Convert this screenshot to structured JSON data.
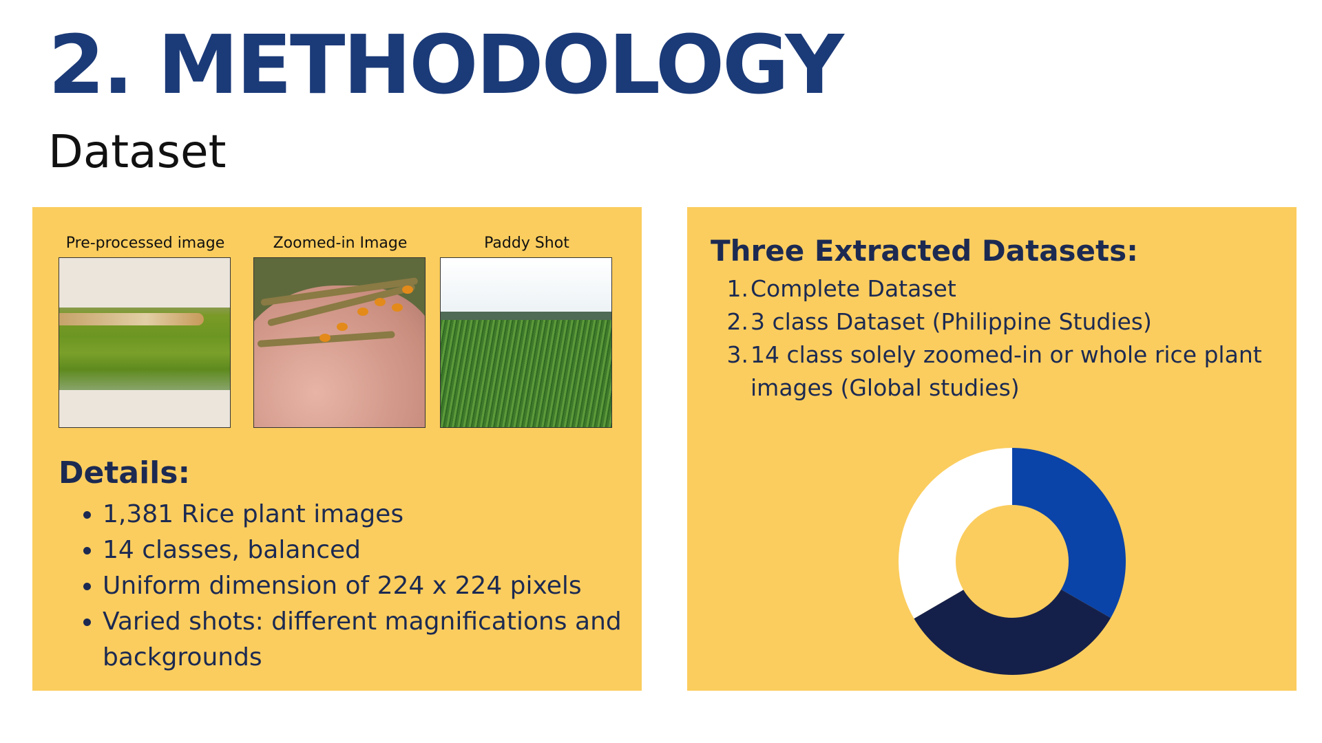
{
  "header": {
    "title": "2. METHODOLOGY",
    "subtitle": "Dataset"
  },
  "left_panel": {
    "images": [
      {
        "label": "Pre-processed image"
      },
      {
        "label": "Zoomed-in Image"
      },
      {
        "label": "Paddy Shot"
      }
    ],
    "details_heading": "Details:",
    "details": [
      "1,381 Rice plant images",
      "14 classes, balanced",
      "Uniform dimension of 224 x 224 pixels",
      "Varied shots: different magnifications and backgrounds"
    ]
  },
  "right_panel": {
    "heading": "Three Extracted Datasets:",
    "items": [
      {
        "num": "1.",
        "text": "Complete Dataset"
      },
      {
        "num": "2.",
        "text": "3 class Dataset  (Philippine Studies)"
      },
      {
        "num": "3.",
        "text": " 14 class solely zoomed-in or whole rice plant images  (Global studies)"
      }
    ]
  },
  "chart_data": {
    "type": "pie",
    "values": [
      33.3,
      33.3,
      33.4
    ],
    "colors": [
      "#0b44a8",
      "#15204a",
      "#ffffff"
    ]
  },
  "colors": {
    "panel_bg": "#fbcd5e",
    "title": "#1b3a78",
    "text": "#1c2a52"
  }
}
